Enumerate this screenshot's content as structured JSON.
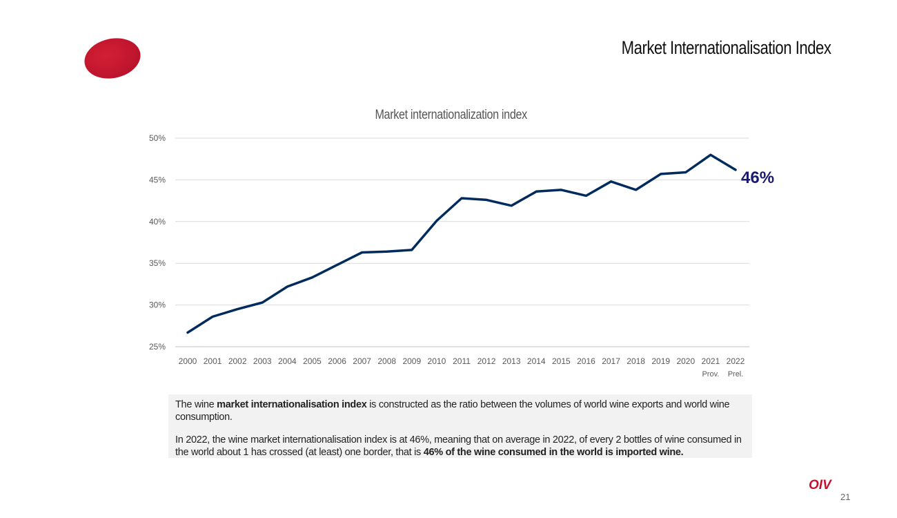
{
  "slide": {
    "title": "Market Internationalisation Index",
    "page_number": "21",
    "brand": "OIV"
  },
  "colors": {
    "brand": "#c0152e",
    "line": "#002b5c",
    "end_label": "#1a1a6e"
  },
  "chart_data": {
    "type": "line",
    "title": "Market internationalization index",
    "xlabel": "",
    "ylabel": "",
    "ylim": [
      25,
      50
    ],
    "yticks": [
      25,
      30,
      35,
      40,
      45,
      50
    ],
    "ytick_labels": [
      "25%",
      "30%",
      "35%",
      "40%",
      "45%",
      "50%"
    ],
    "grid": true,
    "categories": [
      "2000",
      "2001",
      "2002",
      "2003",
      "2004",
      "2005",
      "2006",
      "2007",
      "2008",
      "2009",
      "2010",
      "2011",
      "2012",
      "2013",
      "2014",
      "2015",
      "2016",
      "2017",
      "2018",
      "2019",
      "2020",
      "2021",
      "2022"
    ],
    "category_sublabels": {
      "2021": "Prov.",
      "2022": "Prel."
    },
    "series": [
      {
        "name": "Market internationalization index",
        "values": [
          26.7,
          28.6,
          29.5,
          30.3,
          32.2,
          33.3,
          34.8,
          36.3,
          36.4,
          36.6,
          40.1,
          42.8,
          42.6,
          41.9,
          43.6,
          43.8,
          43.1,
          44.8,
          43.8,
          45.7,
          45.9,
          48.0,
          46.2
        ]
      }
    ],
    "annotations": [
      {
        "text": "46%",
        "target": "2022"
      }
    ]
  },
  "note": {
    "p1_before": "The wine ",
    "p1_bold": "market internationalisation index",
    "p1_after": " is constructed as the ratio between the volumes of world wine exports and world wine consumption.",
    "p2_before": "In 2022, the wine market internationalisation index is at 46%, meaning that on average in 2022, of every 2 bottles of wine consumed in the world about 1 has crossed (at least) one border, that is ",
    "p2_bold": "46% of the wine consumed in the world is imported wine."
  }
}
